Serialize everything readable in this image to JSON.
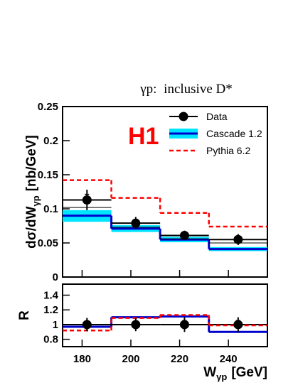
{
  "colors": {
    "data": "#000000",
    "cascade_band": "#00e5ff",
    "cascade_line": "#0000cc",
    "pythia": "#ff0000",
    "reference": "#000000"
  },
  "chart_data": [
    {
      "type": "line",
      "panel": "main",
      "title_prefix": "γp:",
      "title_main": "inclusive D*",
      "experiment_label": "H1",
      "ylabel_main": "dσ/dW",
      "ylabel_sub": "γp",
      "ylabel_units": "[nb/GeV]",
      "xlim": [
        172,
        256
      ],
      "ylim": [
        0,
        0.25
      ],
      "yticks": [
        0,
        0.05,
        0.1,
        0.15,
        0.2,
        0.25
      ],
      "ytick_labels": [
        "0",
        "0.05",
        "0.1",
        "0.15",
        "0.2",
        "0.25"
      ],
      "bin_edges": [
        172,
        192,
        212,
        232,
        256
      ],
      "legend_position": "top-right",
      "series": [
        {
          "name": "Data",
          "kind": "points",
          "x": [
            182,
            202,
            222,
            244
          ],
          "y": [
            0.113,
            0.079,
            0.061,
            0.055
          ],
          "err": [
            0.015,
            0.009,
            0.007,
            0.008
          ],
          "bin_low": [
            0.102,
            0.073,
            0.056,
            0.05
          ],
          "bin_high": [
            0.124,
            0.085,
            0.066,
            0.06
          ]
        },
        {
          "name": "Cascade 1.2",
          "kind": "band",
          "center": [
            0.09,
            0.071,
            0.055,
            0.041
          ],
          "low": [
            0.081,
            0.066,
            0.051,
            0.038
          ],
          "high": [
            0.098,
            0.076,
            0.059,
            0.044
          ]
        },
        {
          "name": "Pythia 6.2",
          "kind": "dashed",
          "y": [
            0.142,
            0.116,
            0.094,
            0.074
          ]
        }
      ],
      "reference_line": {
        "y": [
          0.113,
          0.079,
          0.061,
          0.055
        ]
      }
    },
    {
      "type": "line",
      "panel": "ratio",
      "ylabel": "R",
      "xlabel_main": "W",
      "xlabel_sub": "γp",
      "xlabel_units": "[GeV]",
      "xlim": [
        172,
        256
      ],
      "ylim": [
        0.7,
        1.55
      ],
      "yticks": [
        0.8,
        1,
        1.2,
        1.4
      ],
      "ytick_labels": [
        "0.8",
        "1",
        "1.2",
        "1.4"
      ],
      "xticks": [
        180,
        200,
        220,
        240
      ],
      "xtick_labels": [
        "180",
        "200",
        "220",
        "240"
      ],
      "bin_edges": [
        172,
        192,
        212,
        232,
        256
      ],
      "series": [
        {
          "name": "Data",
          "kind": "points",
          "x": [
            182,
            202,
            222,
            244
          ],
          "y": [
            1.0,
            1.0,
            1.0,
            1.0
          ],
          "err": [
            0.09,
            0.09,
            0.1,
            0.1
          ]
        },
        {
          "name": "Cascade 1.2",
          "kind": "band",
          "center": [
            0.97,
            1.1,
            1.11,
            0.9
          ],
          "low": [
            0.96,
            1.09,
            1.1,
            0.89
          ],
          "high": [
            0.98,
            1.11,
            1.12,
            0.91
          ]
        },
        {
          "name": "Pythia 6.2",
          "kind": "dashed",
          "y": [
            0.92,
            1.09,
            1.13,
            0.99
          ]
        }
      ],
      "reference_line": {
        "y": [
          1.0,
          1.0,
          1.0,
          1.0
        ]
      }
    }
  ]
}
